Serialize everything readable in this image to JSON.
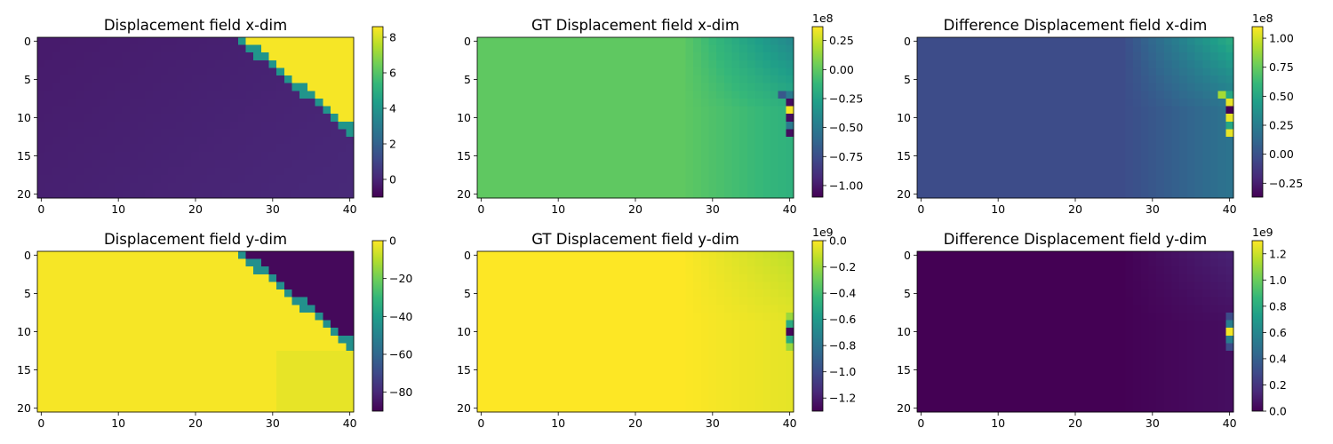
{
  "viridis": [
    "#440154",
    "#482878",
    "#3e4989",
    "#31688e",
    "#26828e",
    "#1f9e89",
    "#35b779",
    "#6ece58",
    "#b5de2b",
    "#fde725"
  ],
  "chart_data": [
    {
      "type": "heatmap",
      "title": "Displacement field x-dim",
      "grid": {
        "rows": 21,
        "cols": 41
      },
      "xticks": [
        0,
        10,
        20,
        30,
        40
      ],
      "yticks": [
        0,
        5,
        10,
        15,
        20
      ],
      "colorbar": {
        "min": -1,
        "max": 8.6,
        "ticks": [
          0,
          2,
          4,
          6,
          8
        ],
        "labels": [
          "0",
          "2",
          "4",
          "6",
          "8"
        ],
        "offset": ""
      },
      "field": {
        "kind": "x_pred"
      }
    },
    {
      "type": "heatmap",
      "title": "GT Displacement field x-dim",
      "grid": {
        "rows": 21,
        "cols": 41
      },
      "xticks": [
        0,
        10,
        20,
        30,
        40
      ],
      "yticks": [
        0,
        5,
        10,
        15,
        20
      ],
      "colorbar": {
        "min": -1.1,
        "max": 0.37,
        "ticks": [
          0.25,
          0,
          -0.25,
          -0.5,
          -0.75,
          -1.0
        ],
        "labels": [
          "0.25",
          "0.00",
          "−0.25",
          "−0.50",
          "−0.75",
          "−1.00"
        ],
        "offset": "1e8"
      },
      "field": {
        "kind": "x_gt"
      }
    },
    {
      "type": "heatmap",
      "title": "Difference Displacement field x-dim",
      "grid": {
        "rows": 21,
        "cols": 41
      },
      "xticks": [
        0,
        10,
        20,
        30,
        40
      ],
      "yticks": [
        0,
        5,
        10,
        15,
        20
      ],
      "colorbar": {
        "min": -0.37,
        "max": 1.1,
        "ticks": [
          1.0,
          0.75,
          0.5,
          0.25,
          0,
          -0.25
        ],
        "labels": [
          "1.00",
          "0.75",
          "0.50",
          "0.25",
          "0.00",
          "−0.25"
        ],
        "offset": "1e8"
      },
      "field": {
        "kind": "x_diff"
      }
    },
    {
      "type": "heatmap",
      "title": "Displacement field y-dim",
      "grid": {
        "rows": 21,
        "cols": 41
      },
      "xticks": [
        0,
        10,
        20,
        30,
        40
      ],
      "yticks": [
        0,
        5,
        10,
        15,
        20
      ],
      "colorbar": {
        "min": -90,
        "max": 0,
        "ticks": [
          0,
          -20,
          -40,
          -60,
          -80
        ],
        "labels": [
          "0",
          "−20",
          "−40",
          "−60",
          "−80"
        ],
        "offset": ""
      },
      "field": {
        "kind": "y_pred"
      }
    },
    {
      "type": "heatmap",
      "title": "GT Displacement field y-dim",
      "grid": {
        "rows": 21,
        "cols": 41
      },
      "xticks": [
        0,
        10,
        20,
        30,
        40
      ],
      "yticks": [
        0,
        5,
        10,
        15,
        20
      ],
      "colorbar": {
        "min": -1.3,
        "max": 0,
        "ticks": [
          0,
          -0.2,
          -0.4,
          -0.6,
          -0.8,
          -1.0,
          -1.2
        ],
        "labels": [
          "0.0",
          "−0.2",
          "−0.4",
          "−0.6",
          "−0.8",
          "−1.0",
          "−1.2"
        ],
        "offset": "1e9"
      },
      "field": {
        "kind": "y_gt"
      }
    },
    {
      "type": "heatmap",
      "title": "Difference Displacement field y-dim",
      "grid": {
        "rows": 21,
        "cols": 41
      },
      "xticks": [
        0,
        10,
        20,
        30,
        40
      ],
      "yticks": [
        0,
        5,
        10,
        15,
        20
      ],
      "colorbar": {
        "min": 0,
        "max": 1.3,
        "ticks": [
          1.2,
          1.0,
          0.8,
          0.6,
          0.4,
          0.2,
          0
        ],
        "labels": [
          "1.2",
          "1.0",
          "0.8",
          "0.6",
          "0.4",
          "0.2",
          "0.0"
        ],
        "offset": "1e9"
      },
      "field": {
        "kind": "y_diff"
      }
    }
  ]
}
